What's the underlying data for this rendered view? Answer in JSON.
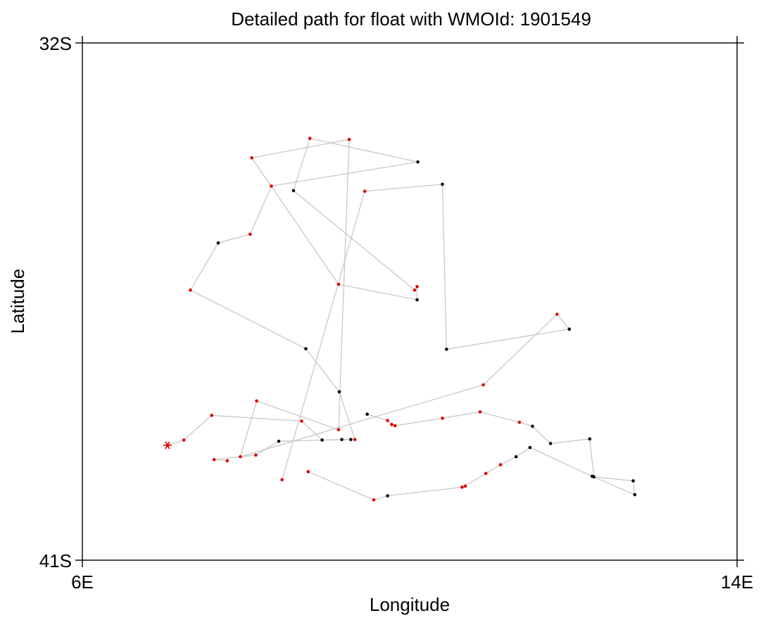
{
  "chart_data": {
    "type": "scatter",
    "title": "Detailed path for float with WMOId: 1901549",
    "xlabel": "Longitude",
    "ylabel": "Latitude",
    "xlim": [
      6,
      14
    ],
    "ylim": [
      -41,
      -32
    ],
    "x_tick_labels": [
      "6E",
      "14E"
    ],
    "y_tick_labels": [
      "32S",
      "41S"
    ],
    "grid": false,
    "colors": {
      "path_line": "#c8c8c8",
      "red_point": "#e00000",
      "black_point": "#000000",
      "start_marker": "#e00000"
    },
    "start_point": {
      "x": 7.04,
      "y": -39.0
    },
    "series": [
      {
        "points": [
          [
            7.04,
            -39.0,
            "red"
          ],
          [
            7.24,
            -38.91,
            "red"
          ],
          [
            7.58,
            -38.48,
            "red"
          ],
          [
            8.68,
            -38.58,
            "red"
          ],
          [
            8.93,
            -38.91,
            "black"
          ],
          [
            9.33,
            -38.9,
            "red"
          ],
          [
            9.14,
            -38.07,
            "black"
          ],
          [
            8.73,
            -37.32,
            "black"
          ],
          [
            7.32,
            -36.3,
            "red"
          ],
          [
            7.66,
            -35.48,
            "black"
          ],
          [
            8.05,
            -35.33,
            "red"
          ],
          [
            8.31,
            -34.49,
            "red"
          ],
          [
            10.1,
            -34.07,
            "black"
          ],
          [
            8.78,
            -33.66,
            "red"
          ],
          [
            8.58,
            -34.57,
            "black"
          ],
          [
            10.06,
            -36.3,
            "red"
          ],
          [
            10.09,
            -36.24,
            "red"
          ],
          [
            10.09,
            -36.47,
            "black"
          ],
          [
            9.13,
            -36.2,
            "red"
          ],
          [
            8.07,
            -34.0,
            "red"
          ],
          [
            9.26,
            -33.68,
            "red"
          ],
          [
            9.13,
            -38.73,
            "red"
          ],
          [
            8.13,
            -38.23,
            "red"
          ],
          [
            7.93,
            -39.2,
            "red"
          ],
          [
            10.9,
            -37.95,
            "red"
          ],
          [
            11.8,
            -36.72,
            "red"
          ],
          [
            11.95,
            -36.98,
            "black"
          ],
          [
            10.45,
            -37.33,
            "black"
          ],
          [
            10.4,
            -34.46,
            "black"
          ],
          [
            9.45,
            -34.58,
            "red"
          ],
          [
            8.44,
            -39.6,
            "red"
          ]
        ]
      },
      {
        "points": [
          [
            9.48,
            -38.46,
            "black"
          ],
          [
            9.73,
            -38.57,
            "red"
          ],
          [
            9.78,
            -38.64,
            "red"
          ],
          [
            9.82,
            -38.66,
            "red"
          ],
          [
            10.4,
            -38.53,
            "red"
          ],
          [
            10.86,
            -38.42,
            "red"
          ],
          [
            11.34,
            -38.6,
            "red"
          ],
          [
            11.5,
            -38.67,
            "black"
          ],
          [
            11.72,
            -38.97,
            "black"
          ],
          [
            12.2,
            -38.89,
            "black"
          ],
          [
            12.25,
            -39.55,
            "black"
          ],
          [
            12.73,
            -39.62,
            "black"
          ],
          [
            12.75,
            -39.86,
            "black"
          ],
          [
            12.23,
            -39.54,
            "black"
          ],
          [
            11.47,
            -39.04,
            "black"
          ],
          [
            11.3,
            -39.2,
            "black"
          ],
          [
            11.11,
            -39.34,
            "red"
          ],
          [
            10.93,
            -39.49,
            "red"
          ],
          [
            10.68,
            -39.71,
            "red"
          ],
          [
            10.64,
            -39.73,
            "red"
          ],
          [
            9.73,
            -39.88,
            "black"
          ],
          [
            9.56,
            -39.95,
            "red"
          ],
          [
            8.76,
            -39.46,
            "red"
          ]
        ]
      },
      {
        "points": [
          [
            7.77,
            -39.27,
            "red"
          ],
          [
            7.61,
            -39.25,
            "red"
          ],
          [
            8.12,
            -39.17,
            "red"
          ],
          [
            8.4,
            -38.93,
            "black"
          ],
          [
            9.17,
            -38.9,
            "black"
          ],
          [
            9.28,
            -38.9,
            "black"
          ]
        ]
      }
    ]
  }
}
